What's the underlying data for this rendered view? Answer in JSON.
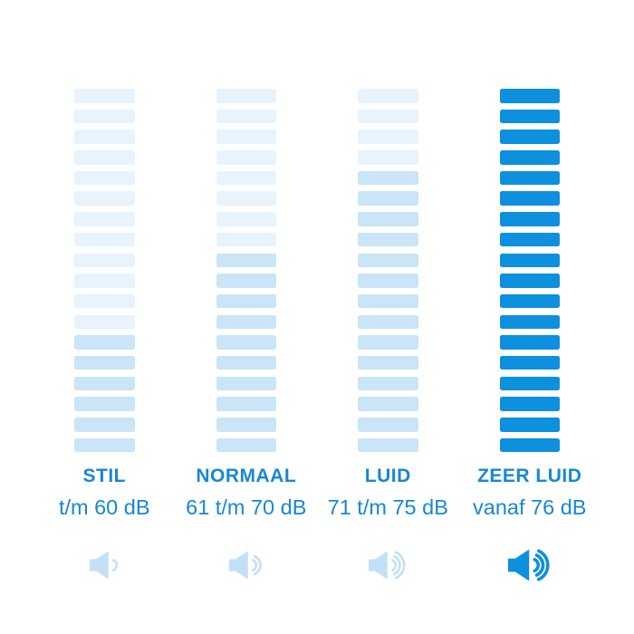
{
  "chart_data": {
    "type": "bar",
    "title": "",
    "categories": [
      "STIL",
      "NORMAAL",
      "LUID",
      "ZEER LUID"
    ],
    "category_sublabels": [
      "t/m 60 dB",
      "61 t/m 70 dB",
      "71 t/m 75 dB",
      "vanaf 76 dB"
    ],
    "series": [
      {
        "name": "segments_total",
        "values": [
          18,
          18,
          18,
          18
        ]
      },
      {
        "name": "segments_highlighted_from_bottom",
        "values": [
          6,
          10,
          14,
          18
        ]
      },
      {
        "name": "speaker_wave_count",
        "values": [
          1,
          2,
          3,
          3
        ]
      }
    ],
    "legend_position": "none",
    "grid": false,
    "orientation": "four vertical stacks of 18 horizontal segments each; highlighted segments counted from bottom"
  },
  "columns": [
    {
      "label": "STIL",
      "range": "t/m 60 dB",
      "total_bars": 18,
      "filled_bars": 6,
      "bar_color_empty": "#e8f3fc",
      "bar_color_filled": "#c9e5f7",
      "icon": "speaker-volume-1",
      "waves": 1,
      "icon_color": "#c3e1f6",
      "bold_icon": false
    },
    {
      "label": "NORMAAL",
      "range": "61 t/m 70 dB",
      "total_bars": 18,
      "filled_bars": 10,
      "bar_color_empty": "#e8f3fc",
      "bar_color_filled": "#c9e5f7",
      "icon": "speaker-volume-2",
      "waves": 2,
      "icon_color": "#c3e1f6",
      "bold_icon": false
    },
    {
      "label": "LUID",
      "range": "71 t/m 75 dB",
      "total_bars": 18,
      "filled_bars": 14,
      "bar_color_empty": "#e8f3fc",
      "bar_color_filled": "#c9e5f7",
      "icon": "speaker-volume-3",
      "waves": 3,
      "icon_color": "#c3e1f6",
      "bold_icon": false
    },
    {
      "label": "ZEER LUID",
      "range": "vanaf 76 dB",
      "total_bars": 18,
      "filled_bars": 18,
      "bar_color_empty": "#0d90dd",
      "bar_color_filled": "#0d90dd",
      "icon": "speaker-volume-3",
      "waves": 3,
      "icon_color": "#0d90dd",
      "bold_icon": true
    }
  ],
  "colors": {
    "background": "#ffffff",
    "text": "#1787d5",
    "bar_empty": "#e8f3fc",
    "bar_filled": "#c9e5f7",
    "bar_solid": "#0d90dd",
    "icon_light": "#c3e1f6",
    "icon_solid": "#0d90dd"
  }
}
